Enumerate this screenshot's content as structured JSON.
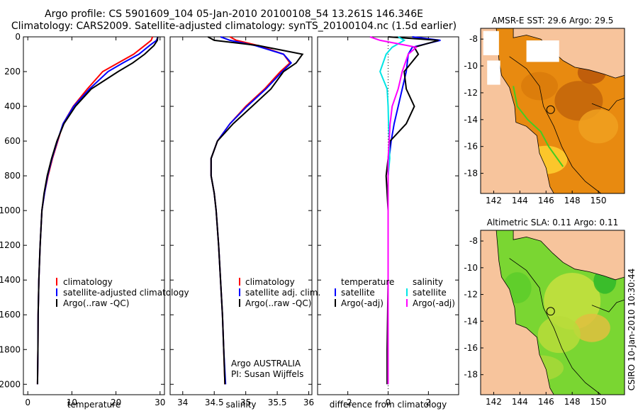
{
  "titles": {
    "line1": "Argo profile: CS 5901609_104 05-Jan-2010 20100108_54 13.261S 146.346E",
    "line2": "Climatology: CARS2009. Satellite-adjusted climatology: synTS_20100104.nc (1.5d earlier)"
  },
  "colors": {
    "climatology": "#ff0000",
    "satellite": "#0000ff",
    "argo": "#000000",
    "sal_satellite": "#00e5e5",
    "sal_argo": "#ff00ff",
    "land": "#f7c49c",
    "sea_green": "#44cc22"
  },
  "chart_data": [
    {
      "type": "line",
      "name": "temperature-profile",
      "xlabel": "temperature",
      "ylabel": "",
      "xlim": [
        -1,
        31
      ],
      "ylim": [
        2060,
        0
      ],
      "xticks": [
        0,
        10,
        20,
        30
      ],
      "yticks": [
        0,
        200,
        400,
        600,
        800,
        1000,
        1200,
        1400,
        1600,
        1800,
        2000
      ],
      "legend": [
        "climatology",
        "satellite-adjusted climatology",
        "Argo(..raw -QC)"
      ],
      "series": [
        {
          "name": "climatology",
          "color": "#ff0000",
          "x": [
            28.3,
            28.0,
            26.5,
            24.0,
            20.5,
            17.0,
            13.5,
            10.3,
            8.0,
            6.8,
            5.6,
            4.6,
            3.8,
            3.2,
            2.8,
            2.5,
            2.35,
            2.3,
            2.2
          ],
          "y": [
            0,
            20,
            50,
            100,
            150,
            200,
            300,
            400,
            500,
            600,
            700,
            800,
            900,
            1000,
            1200,
            1400,
            1600,
            1800,
            2000
          ]
        },
        {
          "name": "satellite-adjusted climatology",
          "color": "#0000ff",
          "x": [
            29.5,
            29.2,
            27.6,
            25.2,
            21.6,
            18.2,
            14.0,
            10.4,
            8.0,
            6.7,
            5.5,
            4.5,
            3.8,
            3.2,
            2.8,
            2.5,
            2.35,
            2.3,
            2.2
          ],
          "y": [
            0,
            20,
            50,
            100,
            150,
            200,
            300,
            400,
            500,
            600,
            700,
            800,
            900,
            1000,
            1200,
            1400,
            1600,
            1800,
            2000
          ]
        },
        {
          "name": "Argo(..raw -QC)",
          "color": "#000000",
          "x": [
            29.5,
            29.4,
            28.6,
            26.5,
            23.8,
            20.5,
            14.4,
            10.8,
            8.2,
            6.6,
            5.4,
            4.4,
            3.7,
            3.2,
            2.8,
            2.5,
            2.35,
            2.3,
            2.2
          ],
          "y": [
            0,
            20,
            50,
            100,
            150,
            200,
            300,
            400,
            500,
            600,
            700,
            800,
            900,
            1000,
            1200,
            1400,
            1600,
            1800,
            2000
          ]
        }
      ]
    },
    {
      "type": "line",
      "name": "salinity-profile",
      "xlabel": "salinity",
      "ylabel": "",
      "xlim": [
        33.8,
        36.05
      ],
      "ylim": [
        2060,
        0
      ],
      "xticks": [
        34,
        34.5,
        35,
        35.5,
        36
      ],
      "legend": [
        "climatology",
        "satellite adj. clim.",
        "Argo(..raw -QC)"
      ],
      "annotation": [
        "Argo AUSTRALIA",
        "PI: Susan Wijffels"
      ],
      "series": [
        {
          "name": "climatology",
          "color": "#ff0000",
          "x": [
            34.75,
            34.85,
            35.2,
            35.6,
            35.7,
            35.55,
            35.3,
            35.0,
            34.75,
            34.55,
            34.45,
            34.45,
            34.5,
            34.53,
            34.57,
            34.6,
            34.63,
            34.65,
            34.67
          ],
          "y": [
            0,
            20,
            50,
            100,
            150,
            200,
            300,
            400,
            500,
            600,
            700,
            800,
            900,
            1000,
            1200,
            1400,
            1600,
            1800,
            2000
          ]
        },
        {
          "name": "satellite adj. clim.",
          "color": "#0000ff",
          "x": [
            34.6,
            34.75,
            35.15,
            35.6,
            35.72,
            35.58,
            35.32,
            35.02,
            34.75,
            34.55,
            34.45,
            34.45,
            34.5,
            34.53,
            34.57,
            34.6,
            34.63,
            34.65,
            34.68
          ],
          "y": [
            0,
            20,
            50,
            100,
            150,
            200,
            300,
            400,
            500,
            600,
            700,
            800,
            900,
            1000,
            1200,
            1400,
            1600,
            1800,
            2000
          ]
        },
        {
          "name": "Argo(..raw -QC)",
          "color": "#000000",
          "x": [
            34.4,
            34.5,
            35.2,
            35.9,
            35.8,
            35.6,
            35.4,
            35.1,
            34.8,
            34.55,
            34.45,
            34.45,
            34.5,
            34.53,
            34.57,
            34.6,
            34.63,
            34.65,
            34.67
          ],
          "y": [
            0,
            20,
            50,
            100,
            150,
            200,
            300,
            400,
            500,
            600,
            700,
            800,
            900,
            1000,
            1200,
            1400,
            1600,
            1800,
            2000
          ]
        }
      ]
    },
    {
      "type": "line",
      "name": "difference-profile",
      "xlabel": "difference from climatology",
      "ylabel": "",
      "xlim": [
        -3.5,
        3.5
      ],
      "ylim": [
        2060,
        0
      ],
      "xticks": [
        -2,
        0,
        2
      ],
      "legend": [
        "temperature",
        "satellite",
        "Argo(-adj)",
        "salinity",
        "satellite",
        "Argo(-adj)"
      ],
      "series": [
        {
          "name": "temperature satellite",
          "color": "#0000ff",
          "x": [
            1.2,
            2.6,
            1.2,
            1.0,
            0.9,
            0.7,
            0.5,
            0.3,
            0.15,
            0.05,
            0.0,
            0.0,
            0.0,
            0.0,
            0.0
          ],
          "y": [
            0,
            20,
            60,
            100,
            200,
            300,
            400,
            500,
            600,
            700,
            800,
            1000,
            1400,
            1800,
            2000
          ]
        },
        {
          "name": "temperature Argo(-adj)",
          "color": "#000000",
          "x": [
            0.0,
            2.5,
            1.3,
            1.5,
            0.8,
            0.9,
            1.3,
            0.9,
            0.1,
            0.0,
            -0.1,
            0.0,
            0.0,
            -0.05,
            -0.05
          ],
          "y": [
            0,
            20,
            60,
            100,
            200,
            300,
            400,
            500,
            600,
            700,
            800,
            1000,
            1400,
            1800,
            2000
          ]
        },
        {
          "name": "salinity satellite",
          "color": "#00e5e5",
          "x": [
            0.5,
            0.8,
            0.2,
            -0.1,
            -0.4,
            -0.05,
            0.0,
            0.02,
            0.05,
            0.08,
            0.0,
            0.0,
            0.0,
            0.0,
            0.0
          ],
          "y": [
            0,
            20,
            60,
            100,
            200,
            300,
            400,
            500,
            600,
            700,
            800,
            1000,
            1400,
            1800,
            2000
          ]
        },
        {
          "name": "salinity Argo(-adj)",
          "color": "#ff00ff",
          "x": [
            -0.9,
            -0.4,
            1.4,
            1.0,
            0.7,
            0.5,
            0.2,
            0.1,
            0.05,
            0.0,
            0.0,
            0.0,
            0.0,
            0.0,
            0.0
          ],
          "y": [
            0,
            20,
            60,
            100,
            200,
            300,
            400,
            500,
            600,
            700,
            800,
            1000,
            1400,
            1800,
            2000
          ]
        }
      ]
    },
    {
      "type": "heatmap",
      "name": "sst-map",
      "title": "AMSR-E SST: 29.6 Argo: 29.5",
      "xticks": [
        142,
        144,
        146,
        148,
        150
      ],
      "yticks": [
        -8,
        -10,
        -12,
        -14,
        -16,
        -18
      ],
      "xlim": [
        141,
        152
      ],
      "ylim": [
        -19.5,
        -7.2
      ],
      "marker": [
        146.35,
        -13.26
      ]
    },
    {
      "type": "heatmap",
      "name": "sla-map",
      "title": "Altimetric SLA: 0.11 Argo: 0.11",
      "xticks": [
        142,
        144,
        146,
        148,
        150
      ],
      "yticks": [
        -8,
        -10,
        -12,
        -14,
        -16,
        -18
      ],
      "xlim": [
        141,
        152
      ],
      "ylim": [
        -19.5,
        -7.2
      ],
      "marker": [
        146.35,
        -13.26
      ]
    }
  ],
  "side_stamp": "CSIRO 10-Jan-2010 10:30:44"
}
